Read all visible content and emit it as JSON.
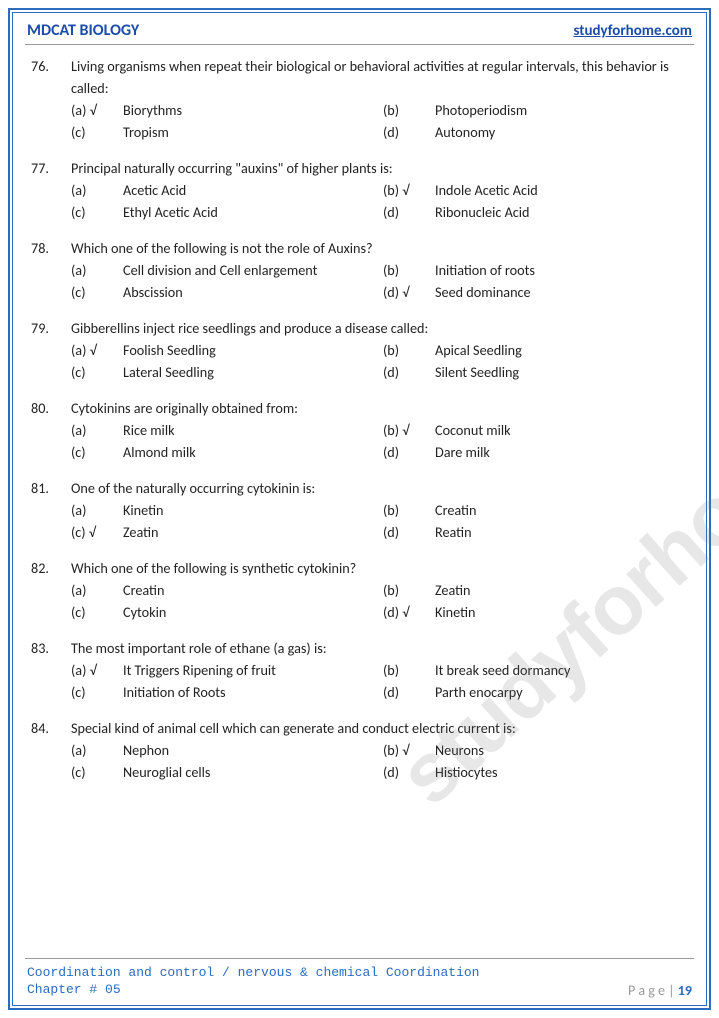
{
  "header": {
    "left": "MDCAT BIOLOGY",
    "right": "studyforhome.com"
  },
  "footer": {
    "topic": "Coordination and control / nervous & chemical Coordination",
    "chapter": "Chapter # 05",
    "page_label": "P a g e  | ",
    "page_number": "19"
  },
  "watermark": "studyforhome.com",
  "colors": {
    "border": "#2a6cc0",
    "header_text": "#1b4da8",
    "body_text": "#222222",
    "footer_label": "#999999",
    "watermark": "rgba(120,120,120,0.18)"
  },
  "questions": [
    {
      "num": "76.",
      "stem": "Living organisms when repeat their biological or behavioral activities at regular intervals, this behavior is called:",
      "options": [
        {
          "letter": "(a) √",
          "text": "Biorythms"
        },
        {
          "letter": "(b)",
          "text": "Photoperiodism"
        },
        {
          "letter": "(c)",
          "text": "Tropism"
        },
        {
          "letter": "(d)",
          "text": "Autonomy"
        }
      ]
    },
    {
      "num": "77.",
      "stem": "Principal naturally occurring \"auxins\" of higher plants is:",
      "options": [
        {
          "letter": "(a)",
          "text": "Acetic Acid"
        },
        {
          "letter": "(b) √",
          "text": "Indole Acetic Acid"
        },
        {
          "letter": "(c)",
          "text": "Ethyl Acetic Acid"
        },
        {
          "letter": "(d)",
          "text": "Ribonucleic Acid"
        }
      ]
    },
    {
      "num": "78.",
      "stem": "Which one of the following is not the role of Auxins?",
      "options": [
        {
          "letter": "(a)",
          "text": "Cell division and Cell enlargement"
        },
        {
          "letter": "(b)",
          "text": "Initiation of roots"
        },
        {
          "letter": "(c)",
          "text": "Abscission"
        },
        {
          "letter": "(d) √",
          "text": "Seed dominance"
        }
      ]
    },
    {
      "num": "79.",
      "stem": "Gibberellins inject rice seedlings and produce a disease called:",
      "options": [
        {
          "letter": "(a) √",
          "text": "Foolish Seedling"
        },
        {
          "letter": "(b)",
          "text": "Apical Seedling"
        },
        {
          "letter": "(c)",
          "text": "Lateral Seedling"
        },
        {
          "letter": "(d)",
          "text": "Silent Seedling"
        }
      ]
    },
    {
      "num": "80.",
      "stem": "Cytokinins are originally obtained from:",
      "options": [
        {
          "letter": "(a)",
          "text": "Rice milk"
        },
        {
          "letter": "(b) √",
          "text": "Coconut milk"
        },
        {
          "letter": "(c)",
          "text": "Almond milk"
        },
        {
          "letter": "(d)",
          "text": "Dare milk"
        }
      ]
    },
    {
      "num": "81.",
      "stem": "One of the naturally occurring cytokinin is:",
      "options": [
        {
          "letter": "(a)",
          "text": "Kinetin"
        },
        {
          "letter": "(b)",
          "text": "Creatin"
        },
        {
          "letter": "(c) √",
          "text": "Zeatin"
        },
        {
          "letter": "(d)",
          "text": "Reatin"
        }
      ]
    },
    {
      "num": "82.",
      "stem": "Which one of the following is synthetic cytokinin?",
      "options": [
        {
          "letter": "(a)",
          "text": "Creatin"
        },
        {
          "letter": "(b)",
          "text": "Zeatin"
        },
        {
          "letter": "(c)",
          "text": "Cytokin"
        },
        {
          "letter": "(d) √",
          "text": "Kinetin"
        }
      ]
    },
    {
      "num": "83.",
      "stem": "The most important role of ethane (a gas) is:",
      "options": [
        {
          "letter": "(a) √",
          "text": "It Triggers Ripening of fruit"
        },
        {
          "letter": "(b)",
          "text": "It break seed dormancy"
        },
        {
          "letter": "(c)",
          "text": "Initiation of Roots"
        },
        {
          "letter": "(d)",
          "text": "Parth enocarpy"
        }
      ]
    },
    {
      "num": "84.",
      "stem": "Special kind of animal cell which can generate and conduct electric current is:",
      "options": [
        {
          "letter": "(a)",
          "text": "Nephon"
        },
        {
          "letter": "(b) √",
          "text": "Neurons"
        },
        {
          "letter": "(c)",
          "text": "Neuroglial cells"
        },
        {
          "letter": "(d)",
          "text": "Histiocytes"
        }
      ]
    }
  ]
}
